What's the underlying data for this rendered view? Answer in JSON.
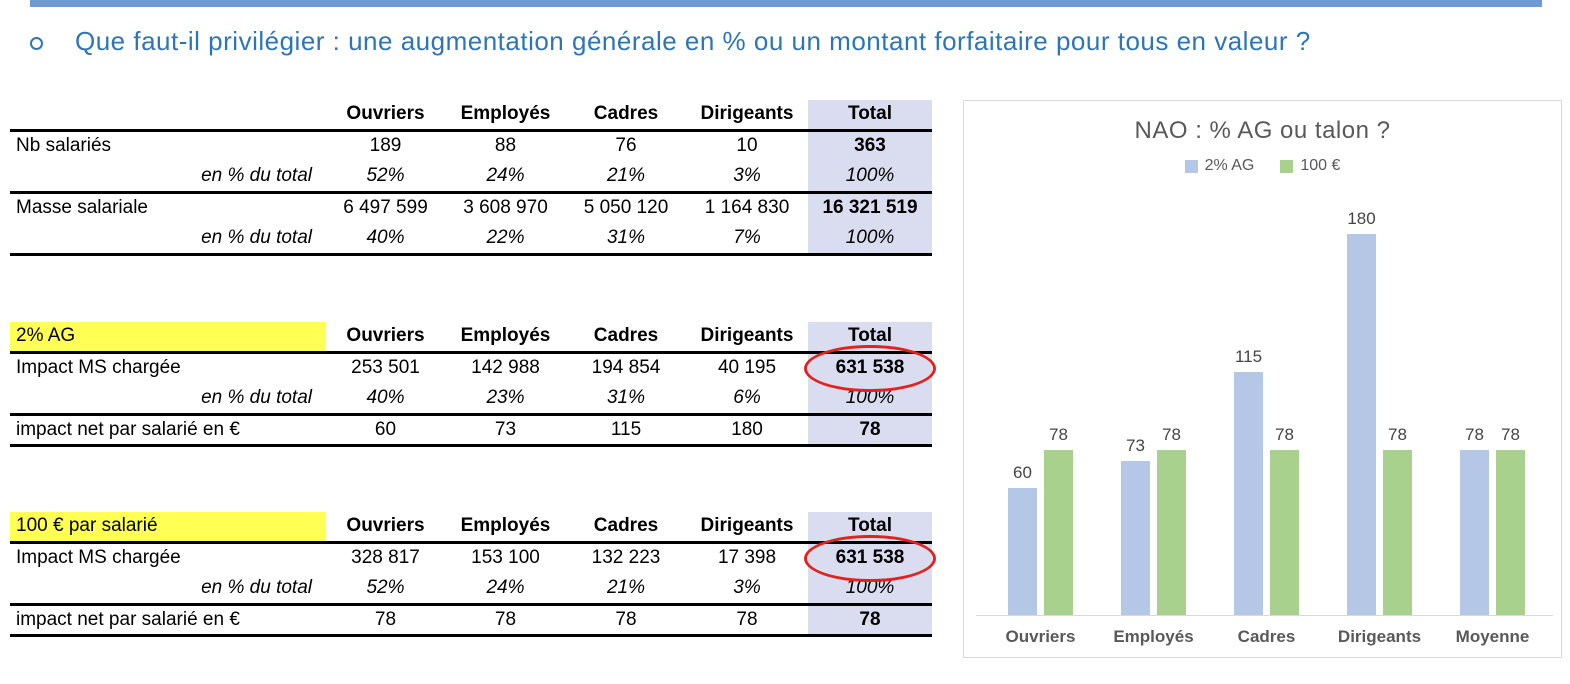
{
  "title": {
    "bullet": "o",
    "text": "Que faut-il privilégier : une augmentation générale en % ou un montant forfaitaire pour tous en valeur ?"
  },
  "colors": {
    "accent_bar": "#6f9ad3",
    "title_text": "#2e75b6",
    "highlight_yellow": "#ffff54",
    "total_column_fill": "#dadcf0",
    "circle_red": "#e0231c",
    "series_blue": "#b4c7e7",
    "series_green": "#a9d18e",
    "chart_text_gray": "#595959"
  },
  "tables": [
    {
      "name": "effectifs-masse-salariale",
      "corner_label": "",
      "corner_highlight": false,
      "columns": [
        "Ouvriers",
        "Employés",
        "Cadres",
        "Dirigeants",
        "Total"
      ],
      "groups": [
        {
          "rows": [
            {
              "label": "Nb salariés",
              "italic": false,
              "circled_total": false,
              "values": [
                "189",
                "88",
                "76",
                "10",
                "363"
              ]
            },
            {
              "label": "en % du total",
              "italic": true,
              "circled_total": false,
              "values": [
                "52%",
                "24%",
                "21%",
                "3%",
                "100%"
              ]
            }
          ]
        },
        {
          "rows": [
            {
              "label": "Masse salariale",
              "italic": false,
              "circled_total": false,
              "values": [
                "6 497 599",
                "3 608 970",
                "5 050 120",
                "1 164 830",
                "16 321 519"
              ]
            },
            {
              "label": "en % du total",
              "italic": true,
              "circled_total": false,
              "values": [
                "40%",
                "22%",
                "31%",
                "7%",
                "100%"
              ]
            }
          ]
        }
      ]
    },
    {
      "name": "scenario-2pct-ag",
      "corner_label": "2% AG",
      "corner_highlight": true,
      "columns": [
        "Ouvriers",
        "Employés",
        "Cadres",
        "Dirigeants",
        "Total"
      ],
      "groups": [
        {
          "rows": [
            {
              "label": "Impact MS chargée",
              "italic": false,
              "circled_total": true,
              "values": [
                "253 501",
                "142 988",
                "194 854",
                "40 195",
                "631 538"
              ]
            },
            {
              "label": "en % du total",
              "italic": true,
              "circled_total": false,
              "values": [
                "40%",
                "23%",
                "31%",
                "6%",
                "100%"
              ]
            }
          ]
        },
        {
          "rows": [
            {
              "label": "impact net par salarié en €",
              "italic": false,
              "circled_total": false,
              "values": [
                "60",
                "73",
                "115",
                "180",
                "78"
              ]
            }
          ]
        }
      ]
    },
    {
      "name": "scenario-100-euros",
      "corner_label": "100 € par salarié",
      "corner_highlight": true,
      "columns": [
        "Ouvriers",
        "Employés",
        "Cadres",
        "Dirigeants",
        "Total"
      ],
      "groups": [
        {
          "rows": [
            {
              "label": "Impact MS chargée",
              "italic": false,
              "circled_total": true,
              "values": [
                "328 817",
                "153 100",
                "132 223",
                "17 398",
                "631 538"
              ]
            },
            {
              "label": "en % du total",
              "italic": true,
              "circled_total": false,
              "values": [
                "52%",
                "24%",
                "21%",
                "3%",
                "100%"
              ]
            }
          ]
        },
        {
          "rows": [
            {
              "label": "impact net par salarié en €",
              "italic": false,
              "circled_total": false,
              "values": [
                "78",
                "78",
                "78",
                "78",
                "78"
              ]
            }
          ]
        }
      ]
    }
  ],
  "chart_data": {
    "type": "bar",
    "title": "NAO : % AG ou talon ?",
    "categories": [
      "Ouvriers",
      "Employés",
      "Cadres",
      "Dirigeants",
      "Moyenne"
    ],
    "series": [
      {
        "name": "2% AG",
        "color": "#b4c7e7",
        "values": [
          60,
          73,
          115,
          180,
          78
        ]
      },
      {
        "name": "100 €",
        "color": "#a9d18e",
        "values": [
          78,
          78,
          78,
          78,
          78
        ]
      }
    ],
    "ylim": [
      0,
      190
    ],
    "xlabel": "",
    "ylabel": "",
    "data_labels": true,
    "legend_position": "top",
    "gridlines": false,
    "y_axis_visible": false
  }
}
